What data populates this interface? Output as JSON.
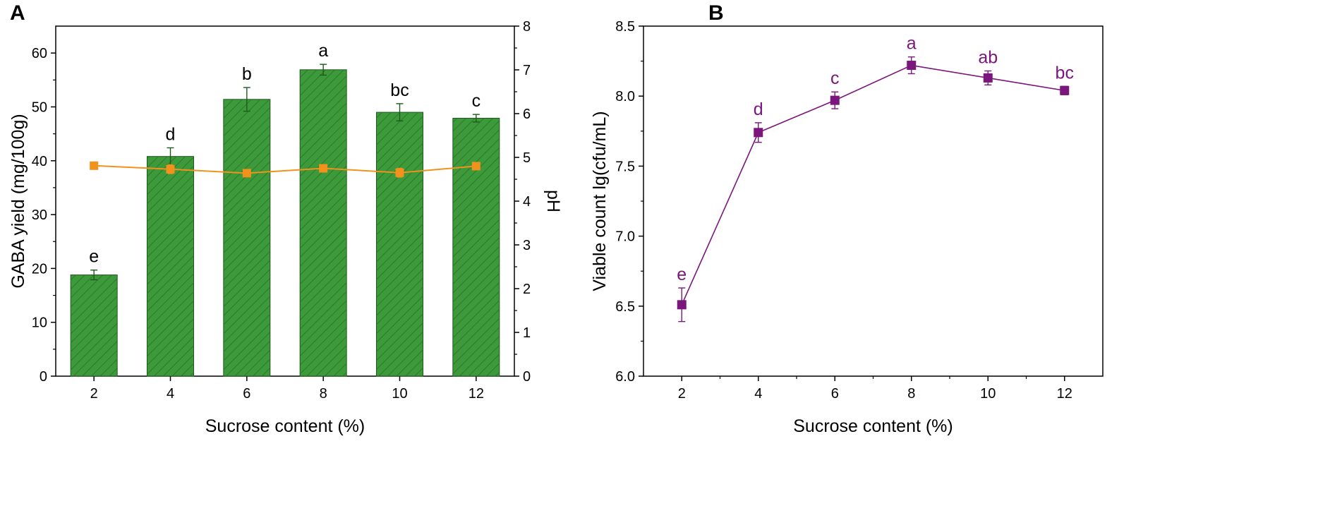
{
  "panels": {
    "a": {
      "letter": "A"
    },
    "b": {
      "letter": "B"
    }
  },
  "colors": {
    "bar_fill": "#3d9a3a",
    "bar_hatch": "#2a6e28",
    "bar_edge": "#1f5a1d",
    "ph_line": "#f2911b",
    "viable": "#7b167c",
    "axis": "#000000"
  },
  "chart_data": [
    {
      "id": "A",
      "type": "bar",
      "title": "",
      "xlabel": "Sucrose content (%)",
      "ylabel": "GABA yield (mg/100g)",
      "y2label": "pH",
      "categories": [
        "2",
        "4",
        "6",
        "8",
        "10",
        "12"
      ],
      "x_ticks": [
        "2",
        "4",
        "6",
        "8",
        "10",
        "12"
      ],
      "ylim": [
        0,
        65
      ],
      "y_ticks": [
        "0",
        "10",
        "20",
        "30",
        "40",
        "50",
        "60"
      ],
      "y2lim": [
        0,
        8
      ],
      "y2_ticks": [
        "0",
        "1",
        "2",
        "3",
        "4",
        "5",
        "6",
        "7",
        "8"
      ],
      "grid": false,
      "series": [
        {
          "name": "GABA yield",
          "kind": "bar",
          "values": [
            18.8,
            40.8,
            51.4,
            56.9,
            49.0,
            47.9
          ],
          "errors": [
            0.9,
            1.6,
            2.2,
            1.0,
            1.6,
            0.7
          ],
          "labels": [
            "e",
            "d",
            "b",
            "a",
            "bc",
            "c"
          ]
        },
        {
          "name": "pH",
          "kind": "line",
          "axis": "right",
          "values": [
            4.81,
            4.73,
            4.64,
            4.75,
            4.65,
            4.8
          ],
          "errors": [
            0.03,
            0.1,
            0.05,
            0.08,
            0.1,
            0.03
          ]
        }
      ]
    },
    {
      "id": "B",
      "type": "line",
      "title": "",
      "xlabel": "Sucrose content (%)",
      "ylabel": "Viable count lg(cfu/mL)",
      "x": [
        2,
        4,
        6,
        8,
        10,
        12
      ],
      "x_ticks": [
        "2",
        "4",
        "6",
        "8",
        "10",
        "12"
      ],
      "xlim": [
        1,
        13
      ],
      "ylim": [
        6.0,
        8.5
      ],
      "y_ticks": [
        "6.0",
        "6.5",
        "7.0",
        "7.5",
        "8.0",
        "8.5"
      ],
      "grid": false,
      "series": [
        {
          "name": "Viable count",
          "values": [
            6.51,
            7.74,
            7.97,
            8.22,
            8.13,
            8.04
          ],
          "errors": [
            0.12,
            0.07,
            0.06,
            0.06,
            0.05,
            0.03
          ],
          "labels": [
            "e",
            "d",
            "c",
            "a",
            "ab",
            "bc"
          ]
        }
      ]
    }
  ]
}
